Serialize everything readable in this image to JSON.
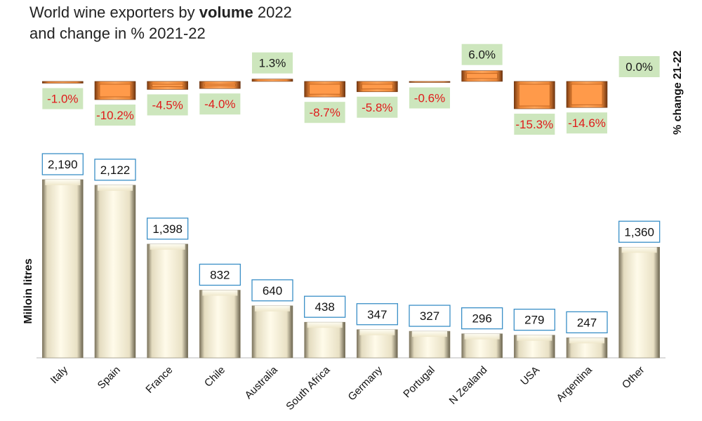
{
  "chart_data": {
    "type": "bar",
    "title_line1_prefix": "World wine exporters by ",
    "title_line1_bold": "volume",
    "title_line1_suffix": " 2022",
    "title_line2": "and change in % 2021-22",
    "ylabel": "Milloin litres",
    "y2label": "% change 21-22",
    "categories": [
      "Italy",
      "Spain",
      "France",
      "Chile",
      "Australia",
      "South Africa",
      "Germany",
      "Portugal",
      "N Zealand",
      "USA",
      "Argentina",
      "Other"
    ],
    "series": [
      {
        "values": [
          2190,
          2122,
          1398,
          832,
          640,
          438,
          347,
          327,
          296,
          279,
          247,
          1360
        ],
        "labels": [
          "2,190",
          "2,122",
          "1,398",
          "832",
          "640",
          "438",
          "347",
          "327",
          "296",
          "279",
          "247",
          "1,360"
        ]
      },
      {
        "values": [
          -1.0,
          -10.2,
          -4.5,
          -4.0,
          1.3,
          -8.7,
          -5.8,
          -0.6,
          6.0,
          -15.3,
          -14.6,
          0.0
        ],
        "labels": [
          "-1.0%",
          "-10.2%",
          "-4.5%",
          "-4.0%",
          "1.3%",
          "-8.7%",
          "-5.8%",
          "-0.6%",
          "6.0%",
          "-15.3%",
          "-14.6%",
          "0.0%"
        ]
      }
    ],
    "colors": {
      "volume_bar": "#f3ecd0",
      "change_bar": "#ef8a3c",
      "change_label_bg": "#cde6bd",
      "negative_text": "#e01b1b",
      "positive_text": "#1a1a1a",
      "value_box_border": "#3a8fc7"
    }
  }
}
